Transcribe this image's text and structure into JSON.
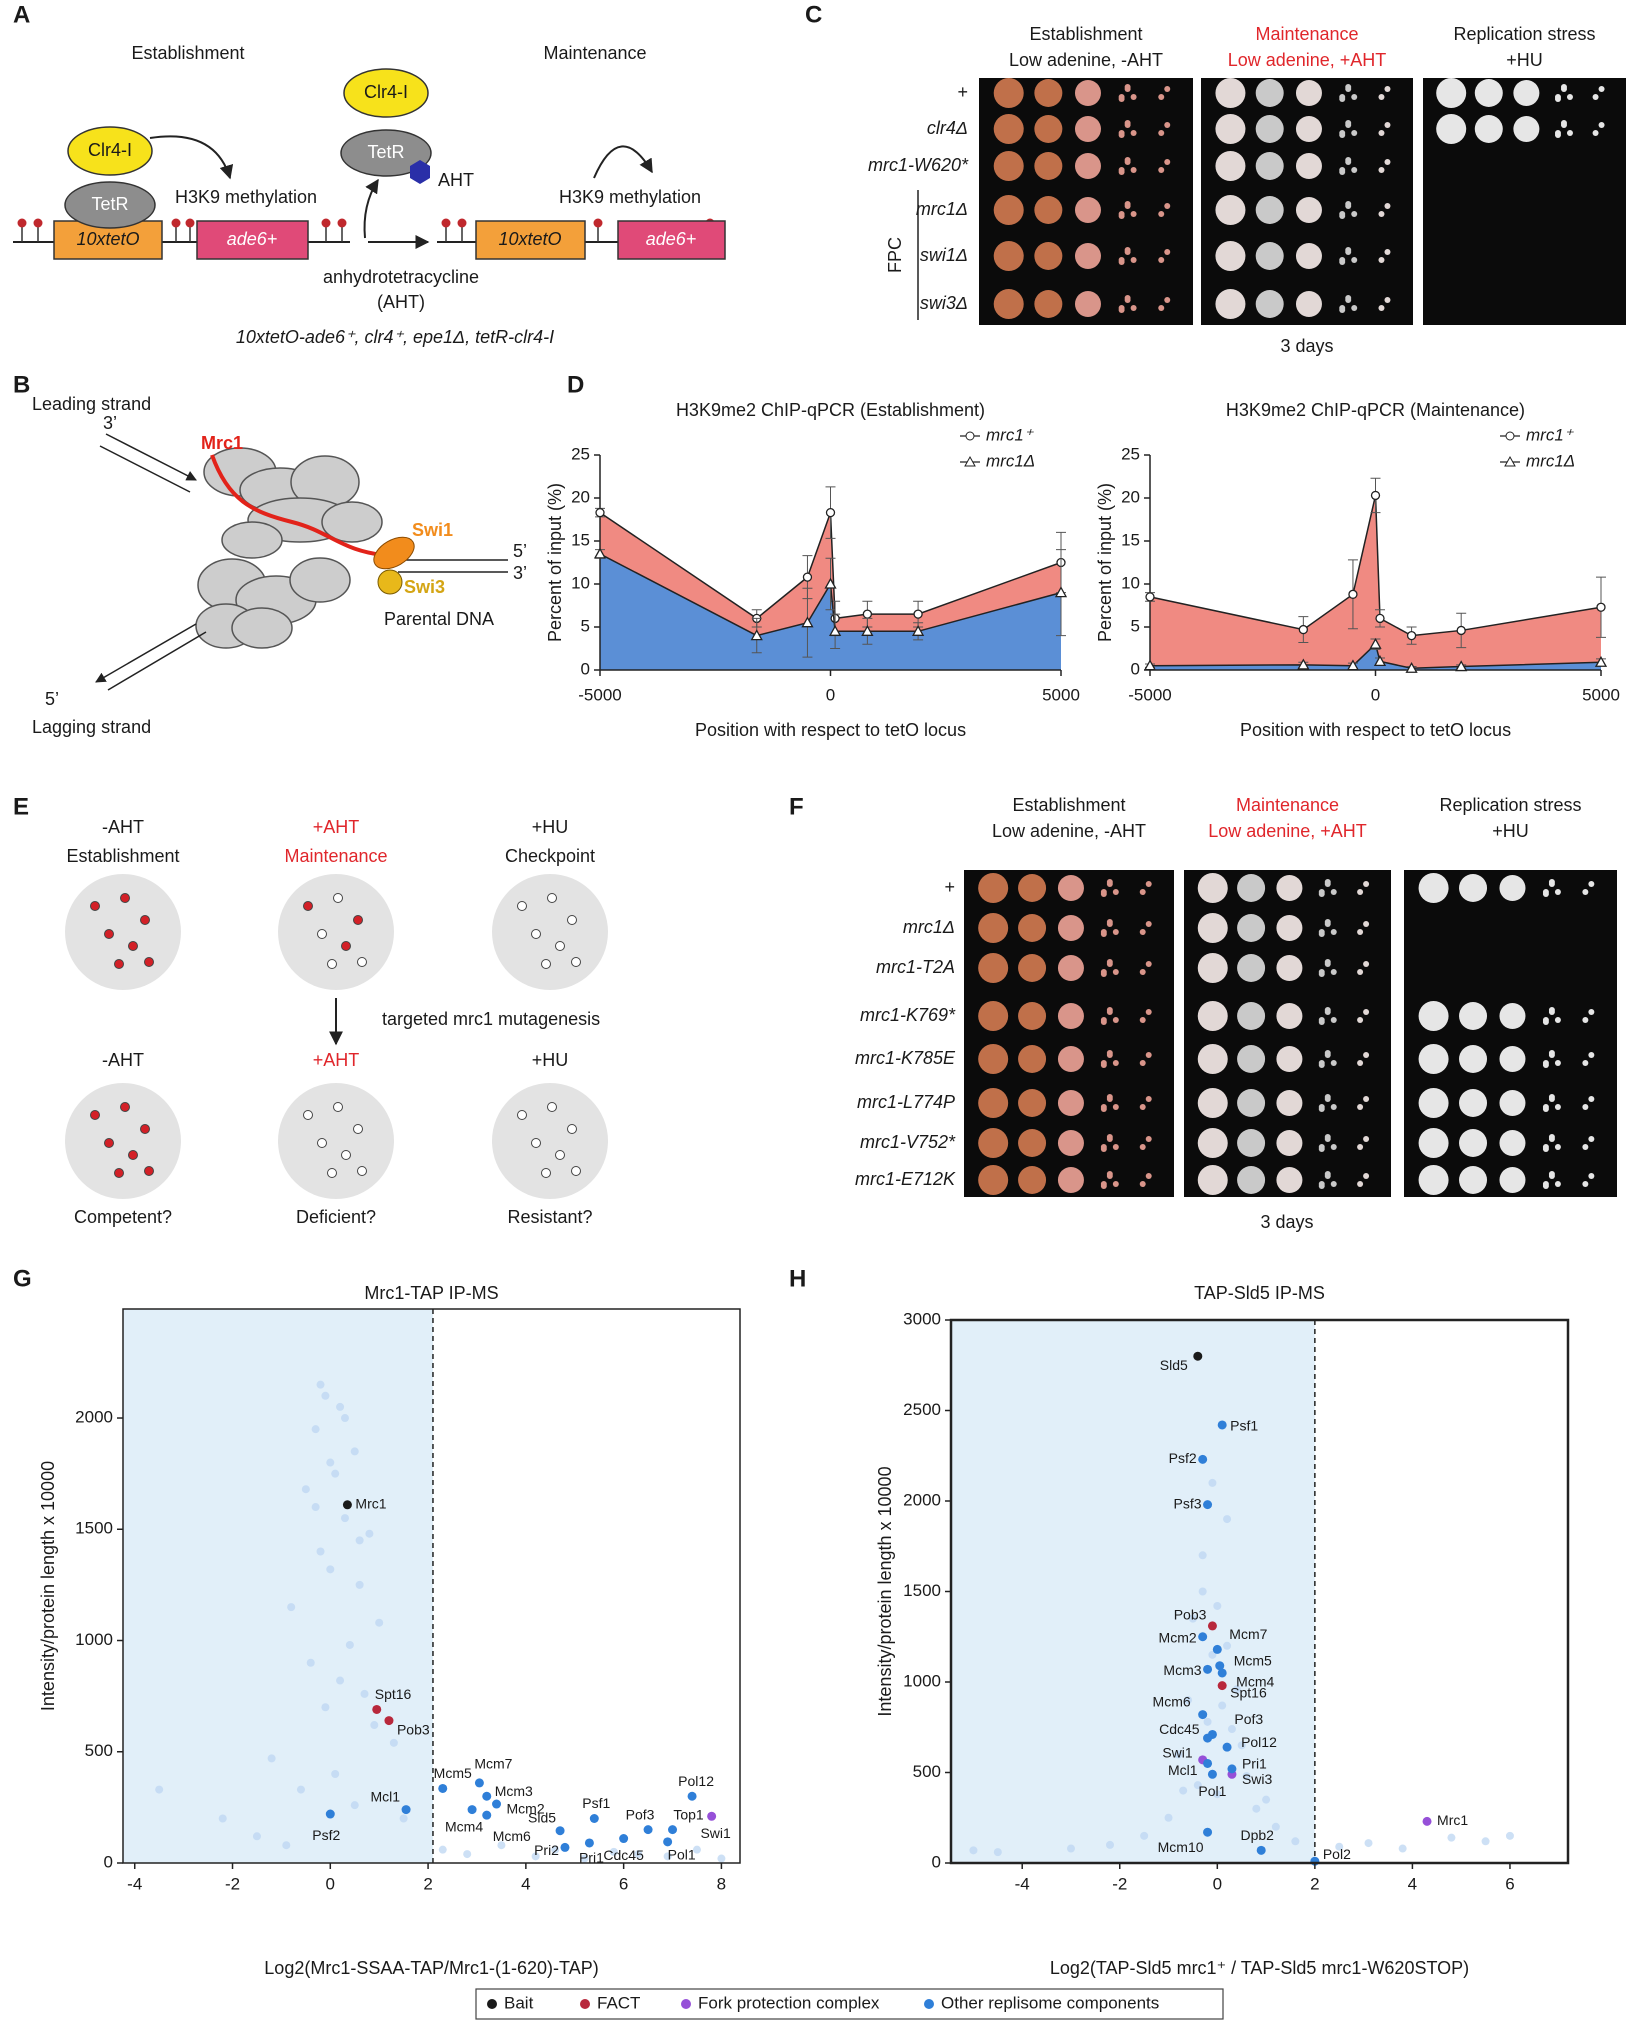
{
  "panel_letters": [
    "A",
    "B",
    "C",
    "D",
    "E",
    "F",
    "G",
    "H"
  ],
  "panel_a": {
    "texts": [
      "Establishment",
      "Maintenance",
      "Clr4-I",
      "TetR",
      "H3K9 methylation",
      "10xtetO",
      "ade6+",
      "Clr4-I",
      "TetR",
      "AHT",
      "H3K9 methylation",
      "10xtetO",
      "ade6+",
      "anhydrotetracycline",
      "(AHT)",
      "10xtetO-ade6⁺, clr4⁺, epe1Δ, tetR-clr4-I"
    ]
  },
  "panel_b": {
    "texts": [
      "Leading strand",
      "3’",
      "Mrc1",
      "Swi1",
      "5’",
      "3’",
      "Swi3",
      "Parental DNA",
      "5’",
      "Lagging strand"
    ]
  },
  "panel_c": {
    "headers": [
      [
        "Establishment",
        "Low adenine, -AHT"
      ],
      [
        "Maintenance",
        "Low adenine, +AHT"
      ],
      [
        "Replication stress",
        "+HU"
      ]
    ],
    "rows": [
      "+",
      "clr4Δ",
      "mrc1-W620*",
      "mrc1Δ",
      "swi1Δ",
      "swi3Δ"
    ],
    "group_label": "FPC",
    "duration": "3 days"
  },
  "panel_e": {
    "texts": [
      "-AHT",
      "Establishment",
      "+AHT",
      "Maintenance",
      "+HU",
      "Checkpoint",
      "targeted mrc1 mutagenesis",
      "-AHT",
      "+AHT",
      "+HU",
      "Competent?",
      "Deficient?",
      "Resistant?"
    ]
  },
  "panel_f": {
    "headers": [
      [
        "Establishment",
        "Low adenine, -AHT"
      ],
      [
        "Maintenance",
        "Low adenine, +AHT"
      ],
      [
        "Replication stress",
        "+HU"
      ]
    ],
    "rows": [
      "+",
      "mrc1Δ",
      "mrc1-T2A",
      "mrc1-K769*",
      "mrc1-K785E",
      "mrc1-L774P",
      "mrc1-V752*",
      "mrc1-E712K"
    ],
    "duration": "3 days"
  },
  "chart_data": [
    {
      "type": "line",
      "title": "H3K9me2 ChIP-qPCR (Establishment)",
      "xlabel": "Position with respect to tetO locus",
      "ylabel": "Percent of input (%)",
      "xlim": [
        -5000,
        5000
      ],
      "xticks": [
        -5000,
        0,
        5000
      ],
      "ylim": [
        0,
        25
      ],
      "yticks": [
        0,
        5,
        10,
        15,
        20,
        25
      ],
      "fill": true,
      "legend": "upper right",
      "x": [
        -5000,
        -1600,
        -500,
        0,
        100,
        800,
        1900,
        5000
      ],
      "series": [
        {
          "name": "mrc1⁺",
          "color": "#f08a82",
          "marker": "circle",
          "values": [
            18.3,
            6,
            10.8,
            18.3,
            6,
            6.5,
            6.5,
            12.5
          ],
          "errors": [
            0.5,
            1,
            2.5,
            3,
            2,
            1.5,
            1.5,
            3.5
          ]
        },
        {
          "name": "mrc1Δ",
          "color": "#5b8fd6",
          "marker": "triangle",
          "values": [
            13.5,
            4,
            5.5,
            10,
            4.5,
            4.5,
            4.5,
            9
          ],
          "errors": [
            0.5,
            2,
            4,
            3,
            2,
            1.5,
            1,
            5
          ]
        }
      ]
    },
    {
      "type": "line",
      "title": "H3K9me2 ChIP-qPCR (Maintenance)",
      "xlabel": "Position with respect to tetO locus",
      "ylabel": "Percent of input (%)",
      "xlim": [
        -5000,
        5000
      ],
      "xticks": [
        -5000,
        0,
        5000
      ],
      "ylim": [
        0,
        25
      ],
      "yticks": [
        0,
        5,
        10,
        15,
        20,
        25
      ],
      "fill": true,
      "legend": "upper right",
      "x": [
        -5000,
        -1600,
        -500,
        0,
        100,
        800,
        1900,
        5000
      ],
      "series": [
        {
          "name": "mrc1⁺",
          "color": "#f08a82",
          "marker": "circle",
          "values": [
            8.5,
            4.7,
            8.8,
            20.3,
            6,
            4,
            4.6,
            7.3
          ],
          "errors": [
            0.5,
            1.5,
            4,
            2,
            1,
            1,
            2,
            3.5
          ]
        },
        {
          "name": "mrc1Δ",
          "color": "#5b8fd6",
          "marker": "triangle",
          "values": [
            0.5,
            0.6,
            0.5,
            3,
            1,
            0.2,
            0.4,
            0.9
          ],
          "errors": [
            0.2,
            0.3,
            0.3,
            0.6,
            0.4,
            0.2,
            0.2,
            0.4
          ]
        }
      ]
    },
    {
      "type": "scatter",
      "title": "Mrc1-TAP IP-MS",
      "xlabel": "Log2(Mrc1-SSAA-TAP/Mrc1-(1-620)-TAP)",
      "ylabel": "Intensity/protein length x 10000",
      "xlim": [
        -4.24,
        8.38
      ],
      "xticks": [
        -4,
        -2,
        0,
        2,
        4,
        6,
        8
      ],
      "ylim": [
        0,
        2490
      ],
      "yticks": [
        0,
        500,
        1000,
        1500,
        2000
      ],
      "vline": 2.1,
      "series": [
        {
          "color": "#bcd6f2",
          "x": [
            -0.1,
            0.2,
            -0.3,
            0.5,
            0.1,
            -0.5,
            0.3,
            0.8,
            -0.2,
            0.0,
            0.6,
            -0.8,
            1.0,
            0.4,
            -0.4,
            0.2,
            0.7,
            -0.1,
            0.9,
            1.3,
            -1.2,
            0.1,
            -0.6,
            0.5,
            1.5,
            -3.5,
            -2.2,
            -1.5,
            -0.9,
            2.3,
            2.8,
            3.5,
            4.2,
            4.6,
            5.2,
            5.8,
            6.3,
            6.9,
            7.5,
            8.0,
            -0.2,
            0.3,
            0.0,
            -0.3,
            0.6
          ],
          "values": [
            2100,
            2050,
            1950,
            1850,
            1750,
            1680,
            1550,
            1480,
            1400,
            1320,
            1250,
            1150,
            1080,
            980,
            900,
            820,
            760,
            700,
            620,
            540,
            470,
            400,
            330,
            260,
            200,
            330,
            200,
            120,
            80,
            60,
            40,
            80,
            30,
            60,
            20,
            50,
            40,
            30,
            60,
            20,
            2150,
            2000,
            1800,
            1600,
            1450
          ]
        },
        {
          "color": "#1a1a1a",
          "labels": [
            "Mrc1"
          ],
          "x": [
            0.35
          ],
          "values": [
            1610
          ]
        },
        {
          "color": "#b8283c",
          "labels": [
            "Spt16",
            "Pob3"
          ],
          "x": [
            0.95,
            1.2
          ],
          "values": [
            690,
            640
          ]
        },
        {
          "color": "#9650d8",
          "labels": [
            "Swi1"
          ],
          "x": [
            7.8
          ],
          "values": [
            210
          ]
        },
        {
          "color": "#2f7fd8",
          "labels": [
            "Mcl1",
            "Psf2",
            "Mcm5",
            "Mcm7",
            "Mcm3",
            "Mcm2",
            "Mcm4",
            "Mcm6",
            "Sld5",
            "Psf1",
            "Pri2",
            "Pri1",
            "Cdc45",
            "Pof3",
            "Top1",
            "Pol12",
            "Pol1"
          ],
          "x": [
            1.55,
            0.0,
            2.3,
            3.05,
            3.2,
            3.4,
            2.9,
            3.2,
            4.7,
            5.4,
            4.8,
            5.3,
            6.0,
            6.5,
            7.0,
            7.4,
            6.9
          ],
          "values": [
            240,
            220,
            335,
            360,
            300,
            265,
            240,
            215,
            145,
            200,
            70,
            90,
            110,
            150,
            150,
            300,
            95
          ]
        }
      ]
    },
    {
      "type": "scatter",
      "title": "TAP-Sld5 IP-MS",
      "xlabel": "Log2(TAP-Sld5 mrc1⁺ / TAP-Sld5 mrc1-W620STOP)",
      "ylabel": "Intensity/protein length x 10000",
      "xlim": [
        -5.46,
        7.19
      ],
      "xticks": [
        -4,
        -2,
        0,
        2,
        4,
        6
      ],
      "ylim": [
        0,
        3000
      ],
      "yticks": [
        0,
        500,
        1000,
        1500,
        2000,
        2500,
        3000
      ],
      "vline": 2,
      "series": [
        {
          "color": "#bcd6f2",
          "x": [
            -0.3,
            0.0,
            -0.5,
            0.2,
            -0.1,
            0.4,
            -0.6,
            0.1,
            -0.2,
            0.3,
            -0.8,
            0.6,
            -0.4,
            0.0,
            0.8,
            -1.0,
            1.2,
            -1.5,
            1.6,
            -2.2,
            -3.0,
            -4.5,
            -5.0,
            2.5,
            3.1,
            3.8,
            4.8,
            5.5,
            6.0,
            -0.1,
            0.2,
            -0.3,
            0.5,
            -0.7,
            1.0
          ],
          "values": [
            1500,
            1420,
            1350,
            1200,
            1150,
            960,
            900,
            870,
            780,
            740,
            600,
            480,
            430,
            380,
            300,
            250,
            200,
            150,
            120,
            100,
            80,
            60,
            70,
            90,
            110,
            80,
            140,
            120,
            150,
            2100,
            1900,
            1700,
            650,
            400,
            350
          ]
        },
        {
          "color": "#1a1a1a",
          "labels": [
            "Sld5"
          ],
          "x": [
            -0.4
          ],
          "values": [
            2800
          ]
        },
        {
          "color": "#b8283c",
          "labels": [
            "Pob3",
            "Spt16"
          ],
          "x": [
            -0.1,
            0.1
          ],
          "values": [
            1310,
            980
          ]
        },
        {
          "color": "#9650d8",
          "labels": [
            "Swi1",
            "Swi3",
            "Mrc1"
          ],
          "x": [
            -0.3,
            0.3,
            4.3
          ],
          "values": [
            570,
            490,
            230
          ]
        },
        {
          "color": "#2f7fd8",
          "labels": [
            "Psf1",
            "Psf2",
            "Psf3",
            "Mcm2",
            "Mcm7",
            "Mcm5",
            "Mcm3",
            "Mcm4",
            "Mcm6",
            "Pof3",
            "Cdc45",
            "Pol12",
            "Mcl1",
            "Pri1",
            "Pol1",
            "Mcm10",
            "Dpb2",
            "Pol2"
          ],
          "x": [
            0.1,
            -0.3,
            -0.2,
            -0.3,
            0.0,
            0.05,
            -0.2,
            0.1,
            -0.3,
            -0.1,
            -0.2,
            0.2,
            -0.2,
            0.3,
            -0.1,
            -0.2,
            0.9,
            2.0
          ],
          "values": [
            2420,
            2230,
            1980,
            1250,
            1180,
            1090,
            1070,
            1050,
            820,
            710,
            690,
            640,
            550,
            520,
            490,
            170,
            70,
            10
          ]
        }
      ]
    }
  ],
  "legend": [
    {
      "name": "Bait",
      "color": "#1a1a1a"
    },
    {
      "name": "FACT",
      "color": "#b8283c"
    },
    {
      "name": "Fork protection complex",
      "color": "#9650d8"
    },
    {
      "name": "Other replisome components",
      "color": "#2f7fd8"
    }
  ]
}
